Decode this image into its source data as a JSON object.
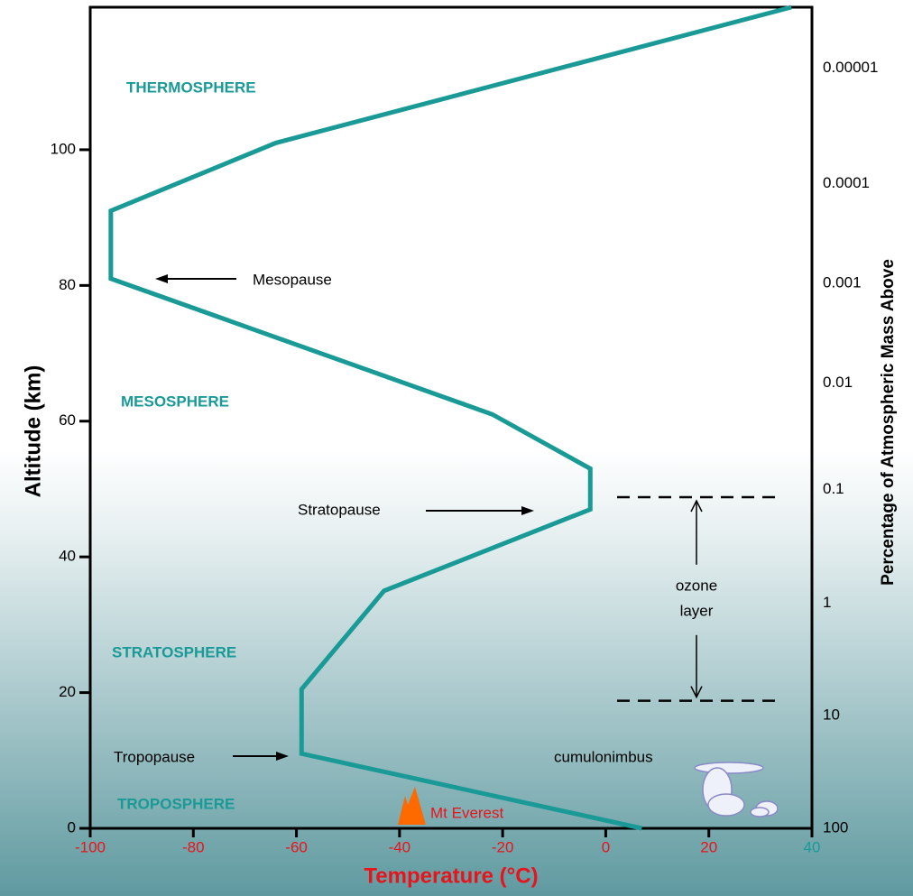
{
  "chart_data": {
    "type": "line",
    "xlabel": "Temperature (°C)",
    "ylabel": "Altitude (km)",
    "y2label": "Percentage of Atmospheric Mass Above",
    "x": [
      7,
      -59,
      -59,
      -43,
      -3,
      -3,
      -22,
      -96,
      -96,
      -64,
      36
    ],
    "values": [
      0,
      11,
      20.5,
      35,
      47,
      53,
      61,
      81,
      91,
      101,
      121
    ],
    "color": "#1a9a96",
    "xlim": [
      -100,
      40
    ],
    "ylim": [
      0,
      121
    ],
    "xticks": [
      -100,
      -80,
      -60,
      -40,
      -20,
      0,
      20,
      40
    ],
    "yticks": [
      0,
      20,
      40,
      60,
      80,
      100
    ],
    "mass_labels": [
      {
        "label": "100",
        "altitude": 0
      },
      {
        "label": "10",
        "altitude": 16.6
      },
      {
        "label": "1",
        "altitude": 33.2
      },
      {
        "label": "0.1",
        "altitude": 49.9
      },
      {
        "label": "0.01",
        "altitude": 65.6
      },
      {
        "label": "0.001",
        "altitude": 80.3
      },
      {
        "label": "0.0001",
        "altitude": 95
      },
      {
        "label": "0.00001",
        "altitude": 112
      }
    ],
    "layers": [
      "THERMOSPHERE",
      "MESOSPHERE",
      "STRATOSPHERE",
      "TROPOSPHERE"
    ],
    "annotations": [
      "Mesopause",
      "Stratopause",
      "Tropopause",
      "cumulonimbus",
      "Mt Everest"
    ],
    "ozone_layer": {
      "label": [
        "ozone",
        "layer"
      ],
      "bottom": 18.8,
      "top": 48.8
    }
  }
}
